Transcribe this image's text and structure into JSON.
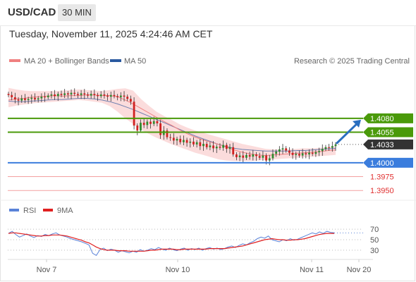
{
  "header": {
    "symbol": "USD/CAD",
    "interval": "30 MIN",
    "timestamp": "Tuesday, November 11, 2025 4:24:46 AM CET"
  },
  "legend": {
    "ma20_label": "MA 20 + Bollinger Bands",
    "ma50_label": "MA 50",
    "credit": "Research © 2025 Trading Central",
    "rsi_label": "RSI",
    "rsi_ma_label": "9MA"
  },
  "colors": {
    "resistance": "#4a9a0a",
    "current": "#333333",
    "pivot": "#3b7ddd",
    "support": "#e03030",
    "support_line": "#f4a0a0",
    "candle_up": "#2e8b2e",
    "candle_down": "#d02020",
    "band": "#f9d0d0",
    "ma20": "#f08080",
    "ma50": "#7080b0",
    "rsi": "#5a82d8",
    "rsi_ma": "#e02020",
    "arrow": "#2a6fc0"
  },
  "chart_data": [
    {
      "type": "candlestick",
      "title": "USD/CAD 30 MIN",
      "x_tick_labels": [
        "Nov 7",
        "Nov 10",
        "Nov 11",
        "Nov 20"
      ],
      "ylim": [
        1.3935,
        1.417
      ],
      "series": [
        {
          "name": "USD/CAD",
          "closes": [
            1.4122,
            1.4118,
            1.4114,
            1.4112,
            1.4116,
            1.4113,
            1.4115,
            1.4117,
            1.4114,
            1.4116,
            1.4119,
            1.4118,
            1.4121,
            1.4123,
            1.412,
            1.4124,
            1.4122,
            1.4125,
            1.4123,
            1.4126,
            1.4124,
            1.4122,
            1.4125,
            1.4123,
            1.4121,
            1.4124,
            1.4122,
            1.412,
            1.4123,
            1.4121,
            1.4119,
            1.4122,
            1.412,
            1.4118,
            1.4121,
            1.4119,
            1.4115,
            1.411,
            1.4067,
            1.4058,
            1.4072,
            1.4068,
            1.4074,
            1.407,
            1.4075,
            1.4071,
            1.405,
            1.4058,
            1.4046,
            1.4045,
            1.404,
            1.4043,
            1.4037,
            1.4041,
            1.4036,
            1.4038,
            1.4033,
            1.4037,
            1.403,
            1.4034,
            1.4028,
            1.4031,
            1.4026,
            1.4029,
            1.4027,
            1.4032,
            1.4025,
            1.4028,
            1.4015,
            1.401,
            1.4013,
            1.4009,
            1.4014,
            1.4011,
            1.4015,
            1.4012,
            1.4009,
            1.4013,
            1.4004,
            1.4008,
            1.4016,
            1.402,
            1.4024,
            1.4026,
            1.4022,
            1.4018,
            1.4014,
            1.4016,
            1.4013,
            1.4017,
            1.4015,
            1.4018,
            1.4016,
            1.4019,
            1.4021,
            1.4025,
            1.4028,
            1.4027,
            1.403,
            1.4033
          ],
          "ma20": [
            1.4113,
            1.4115,
            1.4116,
            1.4118,
            1.4119,
            1.412,
            1.4121,
            1.412,
            1.4121,
            1.4121,
            1.4122,
            1.4122,
            1.4121,
            1.4121,
            1.4119,
            1.4113,
            1.4106,
            1.4098,
            1.409,
            1.4082,
            1.4074,
            1.4067,
            1.4059,
            1.4052,
            1.4046,
            1.4041,
            1.4037,
            1.4033,
            1.4028,
            1.4023,
            1.4019,
            1.4016,
            1.4014,
            1.4013,
            1.4014,
            1.4015,
            1.4016,
            1.4017,
            1.4018,
            1.4019,
            1.402,
            1.4022,
            1.4023
          ],
          "ma50": [
            1.4111,
            1.411,
            1.411,
            1.4111,
            1.4112,
            1.4113,
            1.4114,
            1.4114,
            1.4115,
            1.4116,
            1.4116,
            1.4115,
            1.4113,
            1.411,
            1.4106,
            1.4101,
            1.4096,
            1.409,
            1.4084,
            1.4078,
            1.4072,
            1.4066,
            1.406,
            1.4054,
            1.4048,
            1.4043,
            1.4038,
            1.4033,
            1.4029,
            1.4026,
            1.4024,
            1.4023,
            1.4022,
            1.4021,
            1.4021,
            1.4021,
            1.4021,
            1.4022,
            1.4022,
            1.4023,
            1.4024,
            1.4025,
            1.4026
          ],
          "band_upper": [
            1.4135,
            1.4132,
            1.413,
            1.4129,
            1.4129,
            1.4129,
            1.4129,
            1.413,
            1.4131,
            1.4132,
            1.4131,
            1.413,
            1.4129,
            1.4131,
            1.4133,
            1.4134,
            1.413,
            1.4115,
            1.4103,
            1.4092,
            1.4084,
            1.4077,
            1.4069,
            1.4063,
            1.4058,
            1.4054,
            1.405,
            1.4046,
            1.4042,
            1.4038,
            1.4034,
            1.4031,
            1.4028,
            1.4025,
            1.4024,
            1.4024,
            1.4024,
            1.4025,
            1.4026,
            1.4026,
            1.4027,
            1.4028,
            1.403
          ],
          "band_lower": [
            1.41,
            1.4103,
            1.4105,
            1.4107,
            1.4108,
            1.4109,
            1.411,
            1.4111,
            1.4112,
            1.4113,
            1.4112,
            1.411,
            1.4108,
            1.4102,
            1.4092,
            1.408,
            1.407,
            1.406,
            1.4052,
            1.4045,
            1.4039,
            1.4033,
            1.4028,
            1.4023,
            1.4018,
            1.4014,
            1.401,
            1.4006,
            1.4004,
            1.4003,
            1.4003,
            1.4003,
            1.4004,
            1.4005,
            1.4006,
            1.4007,
            1.4008,
            1.4009,
            1.401,
            1.4011,
            1.4012,
            1.4013,
            1.4014
          ]
        }
      ],
      "levels": [
        {
          "value": 1.408,
          "label": "1.4080",
          "kind": "resistance"
        },
        {
          "value": 1.4055,
          "label": "1.4055",
          "kind": "resistance"
        },
        {
          "value": 1.4033,
          "label": "1.4033",
          "kind": "current"
        },
        {
          "value": 1.4,
          "label": "1.4000",
          "kind": "pivot"
        },
        {
          "value": 1.3975,
          "label": "1.3975",
          "kind": "support"
        },
        {
          "value": 1.395,
          "label": "1.3950",
          "kind": "support"
        }
      ],
      "projection": {
        "direction": "up",
        "target": 1.408
      }
    },
    {
      "type": "line",
      "title": "RSI",
      "y_tick_labels": [
        "70",
        "50",
        "30"
      ],
      "ylim": [
        15,
        85
      ],
      "series": [
        {
          "name": "RSI",
          "values": [
            62,
            66,
            60,
            55,
            58,
            61,
            57,
            54,
            58,
            56,
            60,
            58,
            61,
            63,
            59,
            57,
            55,
            52,
            50,
            48,
            46,
            43,
            40,
            24,
            20,
            31,
            34,
            29,
            32,
            30,
            26,
            29,
            27,
            25,
            28,
            26,
            31,
            28,
            30,
            33,
            31,
            35,
            32,
            30,
            34,
            31,
            29,
            32,
            34,
            30,
            33,
            31,
            34,
            30,
            33,
            35,
            32,
            34,
            31,
            33,
            36,
            38,
            35,
            39,
            42,
            40,
            44,
            47,
            52,
            55,
            53,
            57,
            50,
            48,
            46,
            50,
            48,
            52,
            49,
            51,
            54,
            57,
            60,
            63,
            61,
            65,
            62,
            66,
            64,
            63
          ]
        },
        {
          "name": "9MA",
          "values": [
            62,
            63,
            63,
            62,
            61,
            60,
            59,
            58,
            57,
            57,
            58,
            58,
            59,
            59,
            59,
            58,
            57,
            55,
            53,
            51,
            49,
            46,
            44,
            40,
            36,
            33,
            31,
            30,
            30,
            30,
            29,
            29,
            29,
            28,
            28,
            28,
            28,
            28,
            29,
            30,
            30,
            31,
            32,
            32,
            32,
            32,
            31,
            31,
            32,
            32,
            32,
            32,
            32,
            32,
            32,
            33,
            33,
            33,
            33,
            33,
            34,
            35,
            36,
            37,
            38,
            40,
            42,
            44,
            46,
            48,
            50,
            51,
            52,
            51,
            50,
            50,
            49,
            49,
            50,
            50,
            51,
            52,
            54,
            56,
            58,
            60,
            61,
            62,
            62,
            62
          ]
        }
      ]
    }
  ]
}
